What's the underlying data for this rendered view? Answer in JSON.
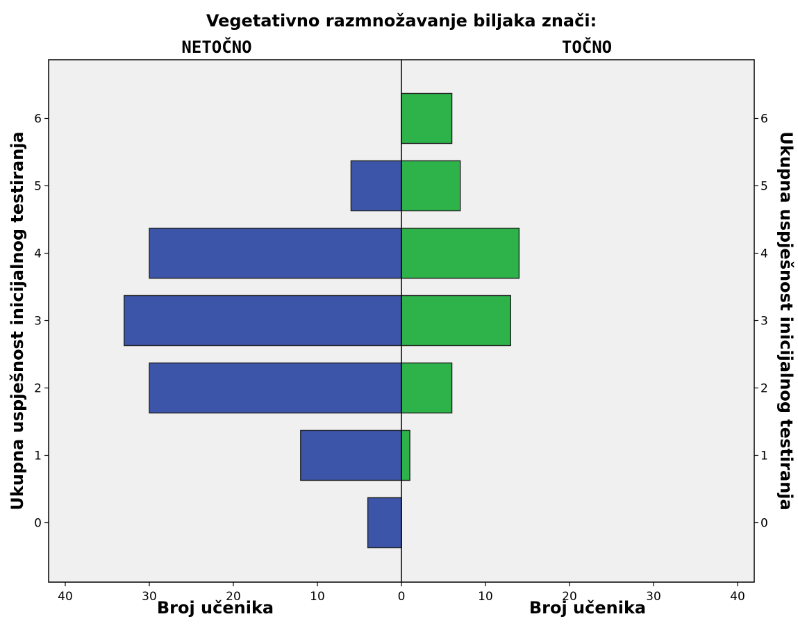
{
  "chart_data": {
    "type": "bar",
    "orientation": "horizontal",
    "layout": "back-to-back",
    "title": "Vegetativno razmnožavanje biljaka znači:",
    "categories": [
      "0",
      "1",
      "2",
      "3",
      "4",
      "5",
      "6"
    ],
    "series": [
      {
        "name": "NETOČNO",
        "side": "left",
        "color": "#3d55a8",
        "values": [
          4,
          12,
          30,
          33,
          30,
          6,
          0
        ]
      },
      {
        "name": "TOČNO",
        "side": "right",
        "color": "#2db34a",
        "values": [
          0,
          1,
          6,
          13,
          14,
          7,
          6
        ]
      }
    ],
    "xlabel_left": "Broj učenika",
    "xlabel_right": "Broj učenika",
    "ylabel_left": "Ukupna uspješnost inicijalnog testiranja",
    "ylabel_right": "Ukupna uspješnost inicijalnog testiranja",
    "xlim": [
      0,
      42
    ],
    "x_ticks": [
      0,
      10,
      20,
      30,
      40
    ],
    "ylim": [
      -1,
      7
    ],
    "y_ticks": [
      0,
      1,
      2,
      3,
      4,
      5,
      6
    ],
    "plot_background": "#f0f0f0",
    "grid": false
  }
}
